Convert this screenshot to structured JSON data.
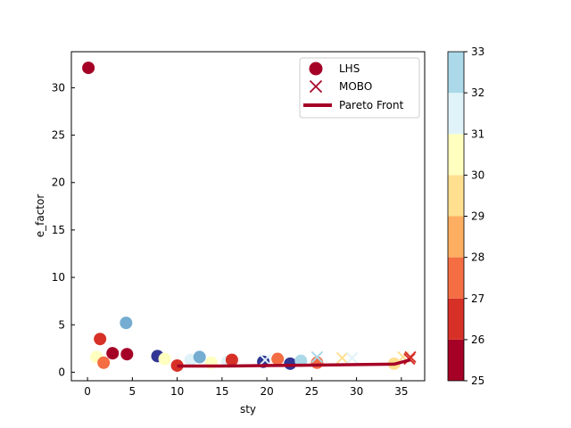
{
  "chart_data": {
    "type": "scatter",
    "title": "",
    "xlabel": "sty",
    "ylabel": "e_factor",
    "xlim": [
      -1.8,
      37.6
    ],
    "ylim": [
      -0.9,
      33.8
    ],
    "x_ticks": [
      0,
      5,
      10,
      15,
      20,
      25,
      30,
      35
    ],
    "y_ticks": [
      0,
      5,
      10,
      15,
      20,
      25,
      30
    ],
    "grid": false,
    "legend_position": "top-right",
    "colorbar": {
      "label": "",
      "min": 25,
      "max": 33,
      "ticks": [
        25,
        26,
        27,
        28,
        29,
        30,
        31,
        32,
        33
      ],
      "colors": [
        "#a50026",
        "#d73027",
        "#f46d43",
        "#fdae61",
        "#fee090",
        "#ffffbf",
        "#e0f3f8",
        "#abd9e9",
        "#74add1"
      ]
    },
    "series": [
      {
        "name": "LHS",
        "marker": "circle",
        "points": [
          {
            "x": 0.1,
            "y": 32.1,
            "c": 25.2
          },
          {
            "x": 1.0,
            "y": 1.6,
            "c": 30.6
          },
          {
            "x": 1.4,
            "y": 3.5,
            "c": 26.1
          },
          {
            "x": 1.8,
            "y": 1.0,
            "c": 27.2
          },
          {
            "x": 2.8,
            "y": 2.0,
            "c": 25.6
          },
          {
            "x": 4.3,
            "y": 5.2,
            "c": 33.5
          },
          {
            "x": 4.4,
            "y": 1.9,
            "c": 25.4
          },
          {
            "x": 7.8,
            "y": 1.7,
            "c": 34.5
          },
          {
            "x": 8.6,
            "y": 1.4,
            "c": 30.1
          },
          {
            "x": 10.0,
            "y": 0.7,
            "c": 26.6
          },
          {
            "x": 11.5,
            "y": 1.3,
            "c": 31.4
          },
          {
            "x": 12.5,
            "y": 1.6,
            "c": 33.5
          },
          {
            "x": 13.8,
            "y": 1.0,
            "c": 30.7
          },
          {
            "x": 15.6,
            "y": 1.1,
            "c": 31.8
          },
          {
            "x": 16.1,
            "y": 1.3,
            "c": 26.3
          },
          {
            "x": 19.6,
            "y": 1.1,
            "c": 34.5
          },
          {
            "x": 21.2,
            "y": 1.4,
            "c": 27.7
          },
          {
            "x": 22.6,
            "y": 0.9,
            "c": 34.5
          },
          {
            "x": 23.8,
            "y": 1.2,
            "c": 32.5
          },
          {
            "x": 25.6,
            "y": 1.0,
            "c": 27.5
          },
          {
            "x": 34.2,
            "y": 0.9,
            "c": 29.8
          }
        ]
      },
      {
        "name": "MOBO",
        "marker": "x",
        "points": [
          {
            "x": 19.8,
            "y": 1.3,
            "c": 31.5
          },
          {
            "x": 25.6,
            "y": 1.6,
            "c": 32.6
          },
          {
            "x": 28.4,
            "y": 1.5,
            "c": 29.3
          },
          {
            "x": 29.5,
            "y": 1.5,
            "c": 31.0
          },
          {
            "x": 35.2,
            "y": 1.6,
            "c": 29.6
          },
          {
            "x": 35.9,
            "y": 1.4,
            "c": 26.7
          },
          {
            "x": 36.0,
            "y": 1.6,
            "c": 26.2
          }
        ]
      },
      {
        "name": "Pareto Front",
        "marker": "line",
        "color": "#a50026",
        "points": [
          {
            "x": 10.0,
            "y": 0.65
          },
          {
            "x": 15.0,
            "y": 0.65
          },
          {
            "x": 19.6,
            "y": 0.7
          },
          {
            "x": 25.0,
            "y": 0.75
          },
          {
            "x": 30.0,
            "y": 0.8
          },
          {
            "x": 34.2,
            "y": 0.85
          },
          {
            "x": 36.0,
            "y": 1.3
          }
        ]
      }
    ]
  }
}
